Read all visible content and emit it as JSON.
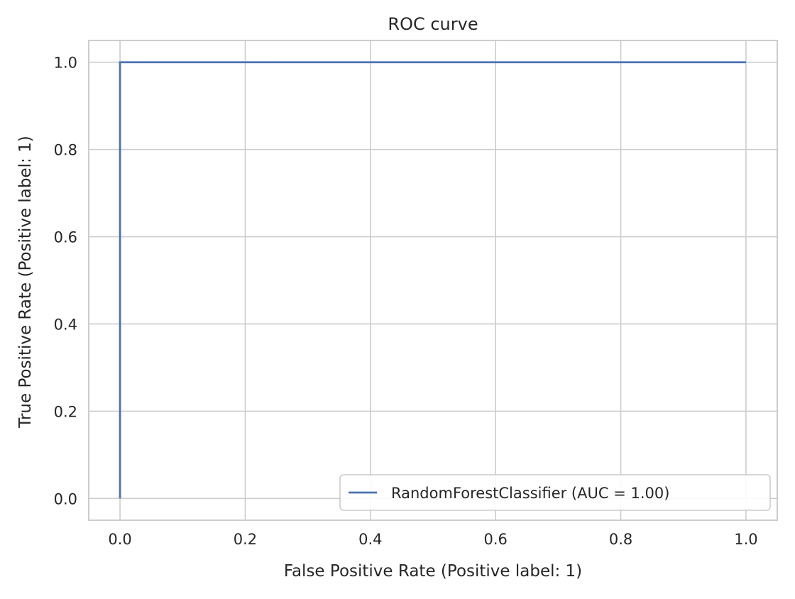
{
  "chart_data": {
    "type": "line",
    "title": "ROC curve",
    "xlabel": "False Positive Rate (Positive label: 1)",
    "ylabel": "True Positive Rate (Positive label: 1)",
    "xlim": [
      -0.05,
      1.05
    ],
    "ylim": [
      -0.05,
      1.05
    ],
    "xticks": [
      0.0,
      0.2,
      0.4,
      0.6,
      0.8,
      1.0
    ],
    "yticks": [
      0.0,
      0.2,
      0.4,
      0.6,
      0.8,
      1.0
    ],
    "xtick_labels": [
      "0.0",
      "0.2",
      "0.4",
      "0.6",
      "0.8",
      "1.0"
    ],
    "ytick_labels": [
      "0.0",
      "0.2",
      "0.4",
      "0.6",
      "0.8",
      "1.0"
    ],
    "grid": true,
    "legend_position": "lower-right",
    "series": [
      {
        "name": "RandomForestClassifier (AUC = 1.00)",
        "color": "#4c72b0",
        "x": [
          0.0,
          0.0,
          1.0
        ],
        "y": [
          0.0,
          1.0,
          1.0
        ]
      }
    ]
  }
}
